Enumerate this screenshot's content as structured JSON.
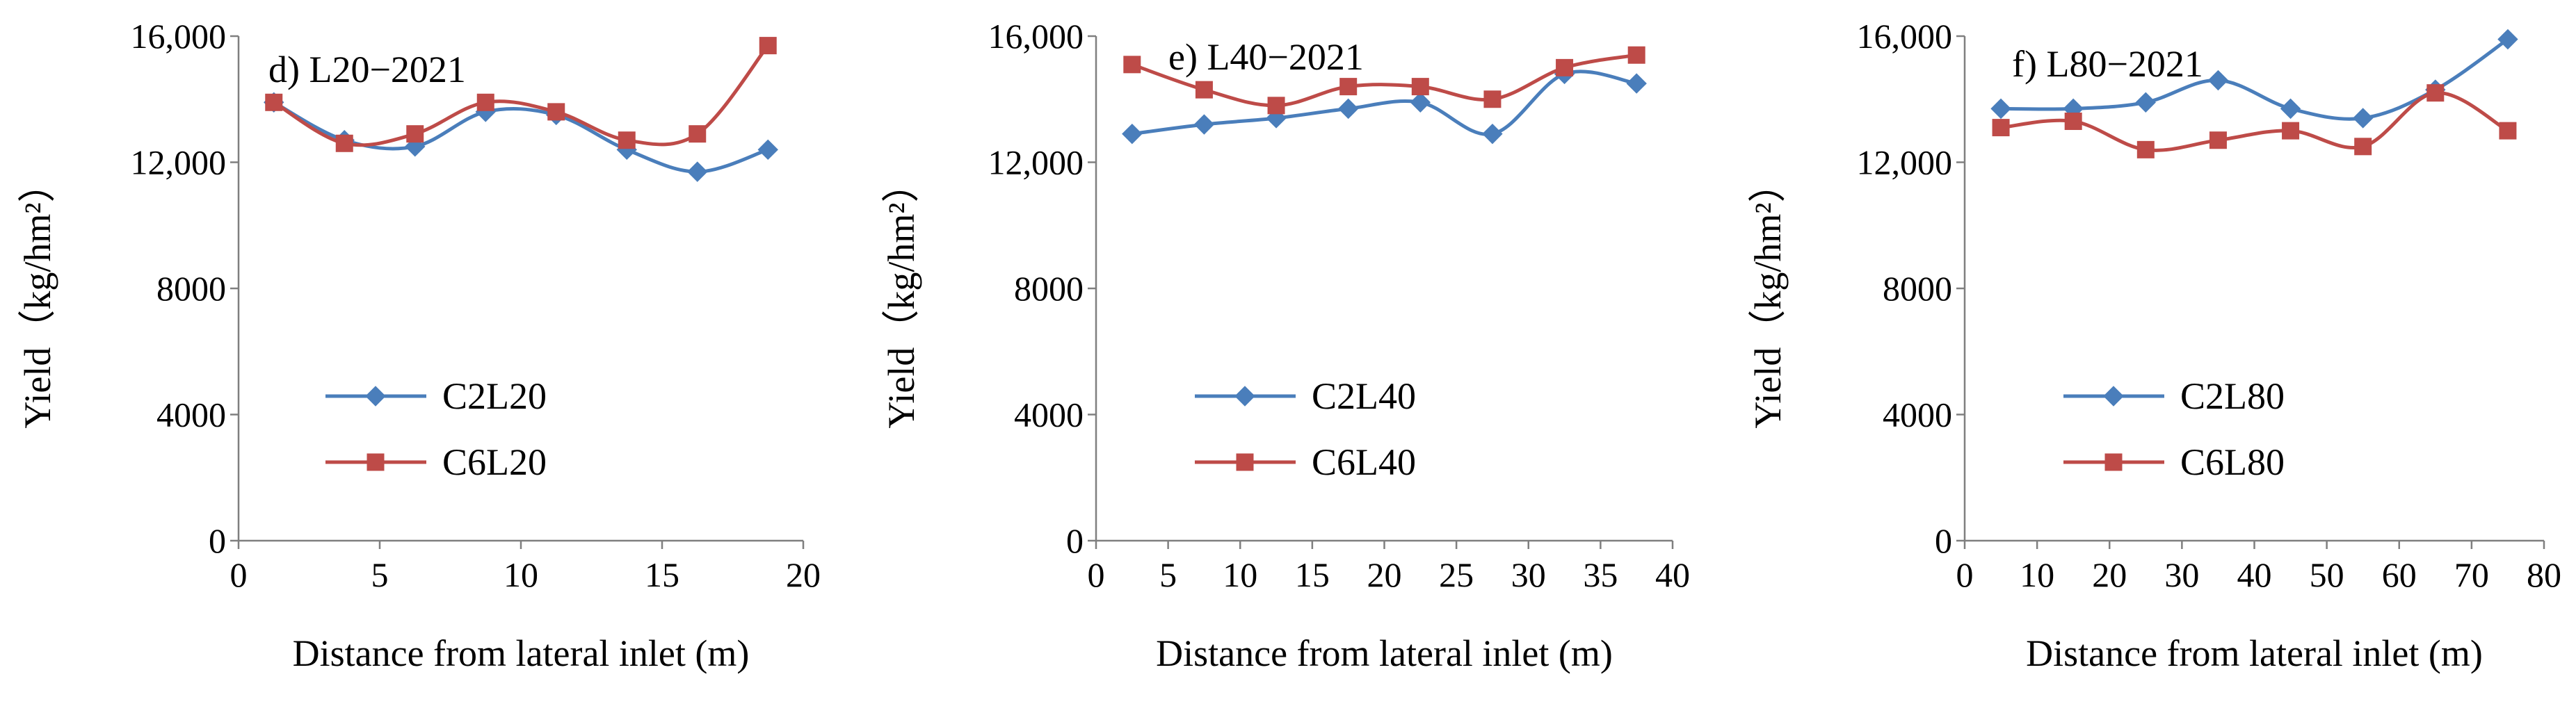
{
  "chart_data": [
    {
      "type": "line",
      "title": "d) L20−2021",
      "xlabel": "Distance from lateral inlet (m)",
      "ylabel": "Yield（kg/hm²）",
      "xlim": [
        0,
        20
      ],
      "ylim": [
        0,
        16000
      ],
      "xticks": [
        0,
        5,
        10,
        15,
        20
      ],
      "xtick_labels": [
        "0",
        "5",
        "10",
        "15",
        "20"
      ],
      "yticks": [
        0,
        4000,
        8000,
        12000,
        16000
      ],
      "ytick_labels": [
        "0",
        "4000",
        "8000",
        "12,000",
        "16,000"
      ],
      "legend_position": "lower-left",
      "series": [
        {
          "name": "C2L20",
          "color": "#4a7ebb",
          "marker": "diamond",
          "x": [
            1.25,
            3.75,
            6.25,
            8.75,
            11.25,
            13.75,
            16.25,
            18.75
          ],
          "y": [
            13900,
            12700,
            12500,
            13600,
            13500,
            12400,
            11700,
            12400
          ]
        },
        {
          "name": "C6L20",
          "color": "#be4b48",
          "marker": "square",
          "x": [
            1.25,
            3.75,
            6.25,
            8.75,
            11.25,
            13.75,
            16.25,
            18.75
          ],
          "y": [
            13900,
            12600,
            12900,
            13900,
            13600,
            12700,
            12900,
            15700
          ]
        }
      ]
    },
    {
      "type": "line",
      "title": "e) L40−2021",
      "xlabel": "Distance from lateral inlet (m)",
      "ylabel": "Yield（kg/hm²）",
      "xlim": [
        0,
        40
      ],
      "ylim": [
        0,
        16000
      ],
      "xticks": [
        0,
        5,
        10,
        15,
        20,
        25,
        30,
        35,
        40
      ],
      "xtick_labels": [
        "0",
        "5",
        "10",
        "15",
        "20",
        "25",
        "30",
        "35",
        "40"
      ],
      "yticks": [
        0,
        4000,
        8000,
        12000,
        16000
      ],
      "ytick_labels": [
        "0",
        "4000",
        "8000",
        "12,000",
        "16,000"
      ],
      "legend_position": "lower-left",
      "series": [
        {
          "name": "C2L40",
          "color": "#4a7ebb",
          "marker": "diamond",
          "x": [
            2.5,
            7.5,
            12.5,
            17.5,
            22.5,
            27.5,
            32.5,
            37.5
          ],
          "y": [
            12900,
            13200,
            13400,
            13700,
            13900,
            12900,
            14800,
            14500
          ]
        },
        {
          "name": "C6L40",
          "color": "#be4b48",
          "marker": "square",
          "x": [
            2.5,
            7.5,
            12.5,
            17.5,
            22.5,
            27.5,
            32.5,
            37.5
          ],
          "y": [
            15100,
            14300,
            13800,
            14400,
            14400,
            14000,
            15000,
            15400
          ]
        }
      ]
    },
    {
      "type": "line",
      "title": "f) L80−2021",
      "xlabel": "Distance from lateral inlet (m)",
      "ylabel": "Yield（kg/hm²）",
      "xlim": [
        0,
        80
      ],
      "ylim": [
        0,
        16000
      ],
      "xticks": [
        0,
        10,
        20,
        30,
        40,
        50,
        60,
        70,
        80
      ],
      "xtick_labels": [
        "0",
        "10",
        "20",
        "30",
        "40",
        "50",
        "60",
        "70",
        "80"
      ],
      "yticks": [
        0,
        4000,
        8000,
        12000,
        16000
      ],
      "ytick_labels": [
        "0",
        "4000",
        "8000",
        "12,000",
        "16,000"
      ],
      "legend_position": "lower-left",
      "series": [
        {
          "name": "C2L80",
          "color": "#4a7ebb",
          "marker": "diamond",
          "x": [
            5,
            15,
            25,
            35,
            45,
            55,
            65,
            75
          ],
          "y": [
            13700,
            13700,
            13900,
            14600,
            13700,
            13400,
            14300,
            15900
          ]
        },
        {
          "name": "C6L80",
          "color": "#be4b48",
          "marker": "square",
          "x": [
            5,
            15,
            25,
            35,
            45,
            55,
            65,
            75
          ],
          "y": [
            13100,
            13300,
            12400,
            12700,
            13000,
            12500,
            14200,
            13000
          ]
        }
      ]
    }
  ]
}
